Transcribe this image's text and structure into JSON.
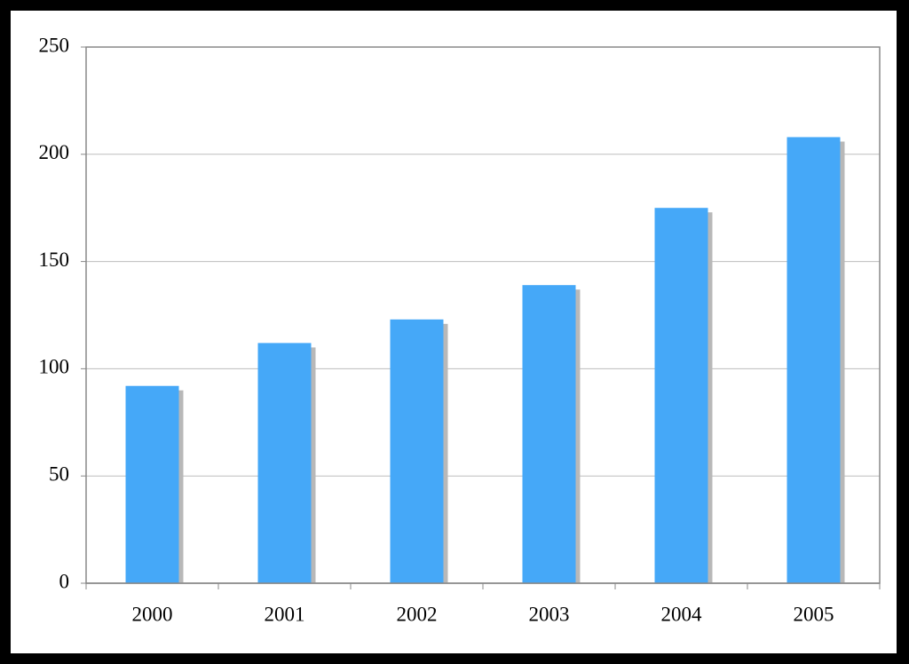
{
  "chart_data": {
    "type": "bar",
    "categories": [
      "2000",
      "2001",
      "2002",
      "2003",
      "2004",
      "2005"
    ],
    "values": [
      92,
      112,
      123,
      139,
      175,
      208
    ],
    "color": "#45a8f8",
    "ylim": [
      0,
      250
    ],
    "yticks": [
      0,
      50,
      100,
      150,
      200,
      250
    ],
    "grid": true
  }
}
